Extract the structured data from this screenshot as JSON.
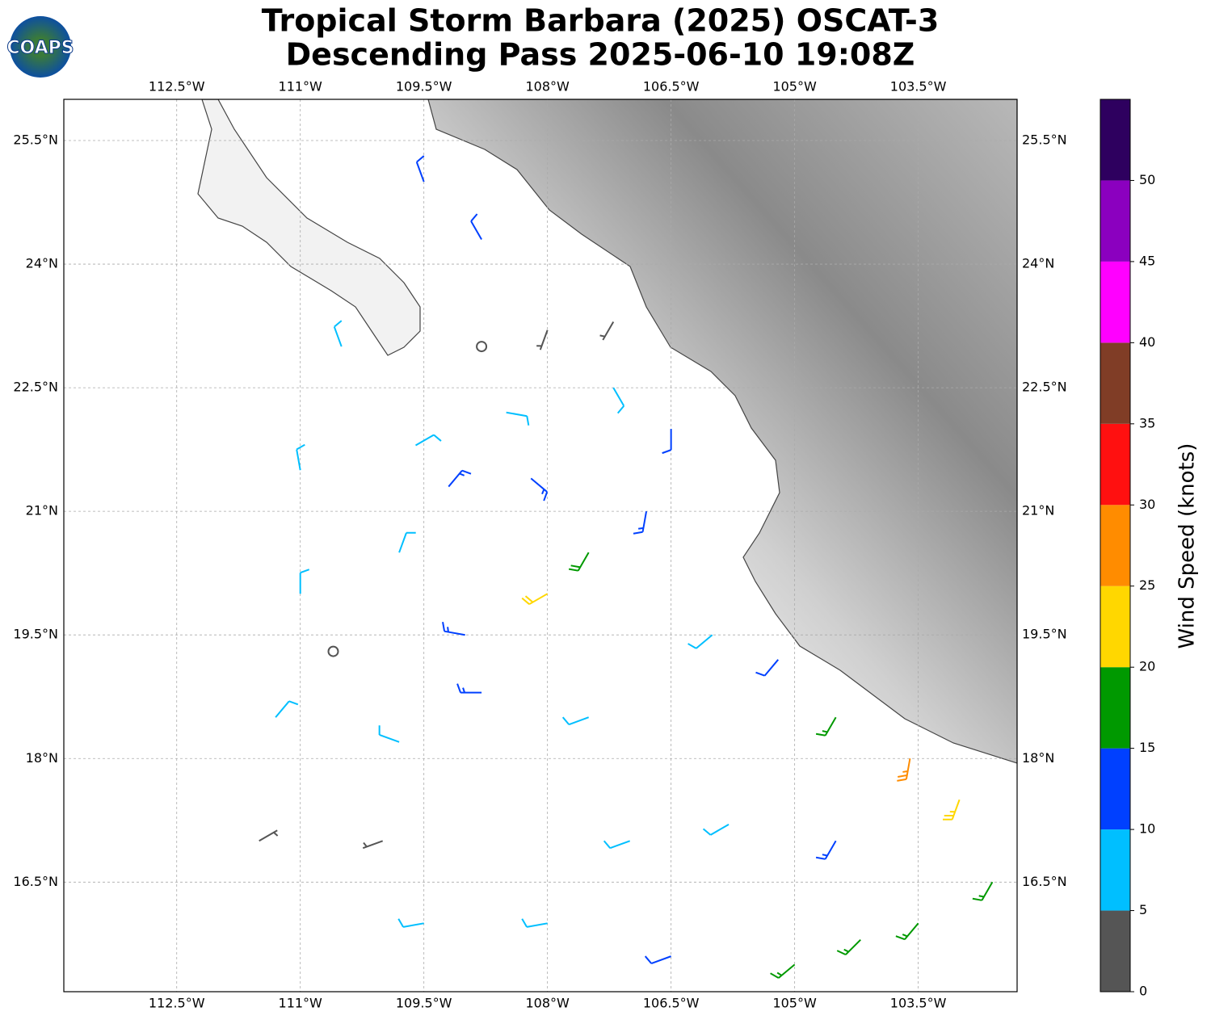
{
  "header": {
    "title_line1": "Tropical Storm Barbara (2025) OSCAT-3",
    "title_line2": "Descending Pass 2025-06-10 19:08Z",
    "logo": "COAPS"
  },
  "map": {
    "xlim": [
      -113.87,
      -102.3
    ],
    "ylim": [
      15.17,
      26.0
    ],
    "xticks": [
      {
        "value": -112.5,
        "label": "112.5°W"
      },
      {
        "value": -111,
        "label": "111°W"
      },
      {
        "value": -109.5,
        "label": "109.5°W"
      },
      {
        "value": -108,
        "label": "108°W"
      },
      {
        "value": -106.5,
        "label": "106.5°W"
      },
      {
        "value": -105,
        "label": "105°W"
      },
      {
        "value": -103.5,
        "label": "103.5°W"
      }
    ],
    "yticks": [
      {
        "value": 16.5,
        "label": "16.5°N"
      },
      {
        "value": 18,
        "label": "18°N"
      },
      {
        "value": 19.5,
        "label": "19.5°N"
      },
      {
        "value": 21,
        "label": "21°N"
      },
      {
        "value": 22.5,
        "label": "22.5°N"
      },
      {
        "value": 24,
        "label": "24°N"
      },
      {
        "value": 25.5,
        "label": "25.5°N"
      }
    ],
    "grid": true,
    "barbs": [
      {
        "lon": -109.5,
        "lat": 25,
        "speed": 12,
        "dir": 340
      },
      {
        "lon": -108.8,
        "lat": 24.3,
        "speed": 12,
        "dir": 330
      },
      {
        "lon": -110.5,
        "lat": 23,
        "speed": 8,
        "dir": 340
      },
      {
        "lon": -111,
        "lat": 21.5,
        "speed": 8,
        "dir": 350
      },
      {
        "lon": -111,
        "lat": 20,
        "speed": 8,
        "dir": 0
      },
      {
        "lon": -110.6,
        "lat": 19.3,
        "speed": 2,
        "dir": 30
      },
      {
        "lon": -111.3,
        "lat": 18.5,
        "speed": 8,
        "dir": 40
      },
      {
        "lon": -111.5,
        "lat": 17,
        "speed": 3,
        "dir": 60
      },
      {
        "lon": -110,
        "lat": 17,
        "speed": 4,
        "dir": 250
      },
      {
        "lon": -109.5,
        "lat": 16,
        "speed": 8,
        "dir": 260
      },
      {
        "lon": -108,
        "lat": 16,
        "speed": 9,
        "dir": 260
      },
      {
        "lon": -106.5,
        "lat": 15.6,
        "speed": 12,
        "dir": 250
      },
      {
        "lon": -105,
        "lat": 15.5,
        "speed": 16,
        "dir": 230
      },
      {
        "lon": -104.2,
        "lat": 15.8,
        "speed": 17,
        "dir": 225
      },
      {
        "lon": -103.5,
        "lat": 16,
        "speed": 16,
        "dir": 220
      },
      {
        "lon": -102.6,
        "lat": 16.5,
        "speed": 17,
        "dir": 210
      },
      {
        "lon": -103,
        "lat": 17.5,
        "speed": 23,
        "dir": 200
      },
      {
        "lon": -103.6,
        "lat": 18,
        "speed": 27,
        "dir": 190
      },
      {
        "lon": -104.5,
        "lat": 17,
        "speed": 14,
        "dir": 210
      },
      {
        "lon": -104.5,
        "lat": 18.5,
        "speed": 17,
        "dir": 210
      },
      {
        "lon": -105.2,
        "lat": 19.2,
        "speed": 12,
        "dir": 220
      },
      {
        "lon": -105.8,
        "lat": 17.2,
        "speed": 8,
        "dir": 240
      },
      {
        "lon": -106,
        "lat": 19.5,
        "speed": 8,
        "dir": 230
      },
      {
        "lon": -107,
        "lat": 17,
        "speed": 9,
        "dir": 250
      },
      {
        "lon": -107.5,
        "lat": 18.5,
        "speed": 9,
        "dir": 250
      },
      {
        "lon": -108.8,
        "lat": 18.8,
        "speed": 13,
        "dir": 270
      },
      {
        "lon": -109.8,
        "lat": 18.2,
        "speed": 8,
        "dir": 290
      },
      {
        "lon": -109,
        "lat": 19.5,
        "speed": 14,
        "dir": 280
      },
      {
        "lon": -108,
        "lat": 20,
        "speed": 22,
        "dir": 240
      },
      {
        "lon": -107.5,
        "lat": 20.5,
        "speed": 18,
        "dir": 210
      },
      {
        "lon": -106.8,
        "lat": 21,
        "speed": 13,
        "dir": 190
      },
      {
        "lon": -106.5,
        "lat": 22,
        "speed": 12,
        "dir": 180
      },
      {
        "lon": -107.2,
        "lat": 22.5,
        "speed": 8,
        "dir": 150
      },
      {
        "lon": -108.5,
        "lat": 22.2,
        "speed": 8,
        "dir": 100
      },
      {
        "lon": -109.6,
        "lat": 21.8,
        "speed": 8,
        "dir": 60
      },
      {
        "lon": -109.8,
        "lat": 20.5,
        "speed": 8,
        "dir": 20
      },
      {
        "lon": -109.2,
        "lat": 21.3,
        "speed": 13,
        "dir": 40
      },
      {
        "lon": -108.2,
        "lat": 21.4,
        "speed": 13,
        "dir": 130
      },
      {
        "lon": -108,
        "lat": 23.2,
        "speed": 3,
        "dir": 200
      },
      {
        "lon": -107.2,
        "lat": 23.3,
        "speed": 3,
        "dir": 210
      },
      {
        "lon": -108.8,
        "lat": 23,
        "speed": 2,
        "dir": 270
      }
    ]
  },
  "colorbar": {
    "label": "Wind Speed (knots)",
    "bounds": [
      0,
      5,
      10,
      15,
      20,
      25,
      30,
      35,
      40,
      45,
      50,
      55
    ],
    "colors": [
      "#555555",
      "#00bfff",
      "#0040ff",
      "#009900",
      "#ffd700",
      "#ff8c00",
      "#ff1010",
      "#803d26",
      "#ff00ff",
      "#8b00bf",
      "#2e005f"
    ],
    "ticks": [
      0,
      5,
      10,
      15,
      20,
      25,
      30,
      35,
      40,
      45,
      50
    ]
  }
}
